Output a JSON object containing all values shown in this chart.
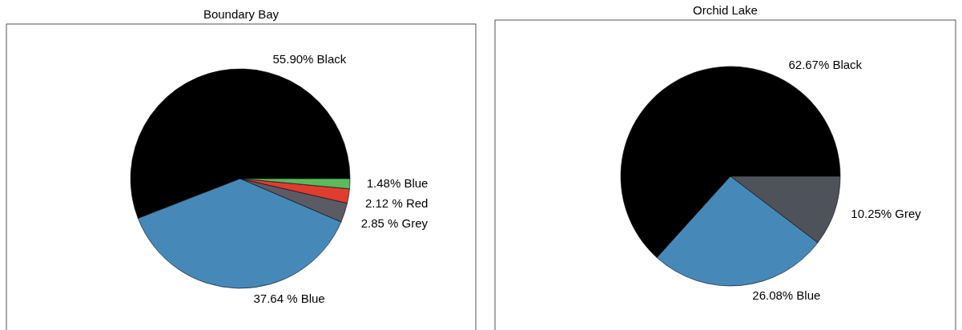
{
  "chart_data": [
    {
      "type": "pie",
      "title": "Boundary Bay",
      "categories": [
        "Black",
        "Blue",
        "Grey",
        "Red",
        "Blue"
      ],
      "values": [
        55.9,
        37.64,
        2.85,
        2.12,
        1.48
      ],
      "value_labels": [
        "55.90%",
        "37.64 %",
        "2.85 %",
        "2.12 %",
        "1.48%"
      ],
      "colors": [
        "#000000",
        "#4689b9",
        "#5b5b66",
        "#e03c31",
        "#5cb85c"
      ]
    },
    {
      "type": "pie",
      "title": "Orchid Lake",
      "categories": [
        "Black",
        "Blue",
        "Grey"
      ],
      "values": [
        62.67,
        26.08,
        10.25
      ],
      "value_labels": [
        "62.67%",
        "26.08%",
        "10.25%"
      ],
      "colors": [
        "#000000",
        "#4689b9",
        "#4d525b"
      ]
    }
  ]
}
